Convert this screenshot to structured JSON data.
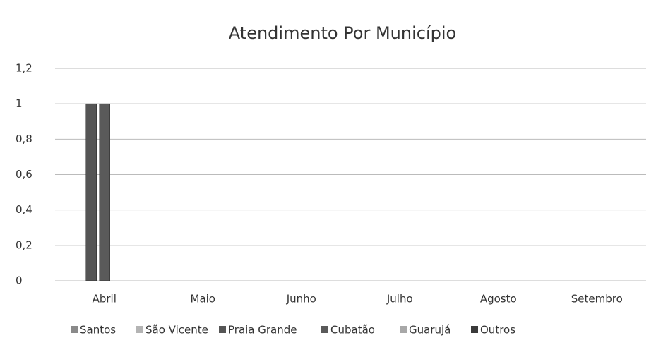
{
  "chart_data": {
    "type": "bar",
    "title": "Atendimento Por Município",
    "categories": [
      "Abril",
      "Maio",
      "Junho",
      "Julho",
      "Agosto",
      "Setembro"
    ],
    "series": [
      {
        "name": "Santos",
        "color": "#8a8a8a",
        "values": [
          0,
          0,
          0,
          0,
          0,
          0
        ]
      },
      {
        "name": "São Vicente",
        "color": "#b4b4b4",
        "values": [
          0,
          0,
          0,
          0,
          0,
          0
        ]
      },
      {
        "name": "Praia Grande",
        "color": "#555555",
        "values": [
          1,
          0,
          0,
          0,
          0,
          0
        ]
      },
      {
        "name": "Cubatão",
        "color": "#5a5a5a",
        "values": [
          1,
          0,
          0,
          0,
          0,
          0
        ]
      },
      {
        "name": "Guarujá",
        "color": "#a8a8a8",
        "values": [
          0,
          0,
          0,
          0,
          0,
          0
        ]
      },
      {
        "name": "Outros",
        "color": "#3a3a3a",
        "values": [
          0,
          0,
          0,
          0,
          0,
          0
        ]
      }
    ],
    "ylim": [
      0,
      1.2
    ],
    "yticks": [
      0,
      {
        "value": 0.2,
        "label": "0,2"
      },
      {
        "value": 0.4,
        "label": "0,4"
      },
      {
        "value": 0.6,
        "label": "0,6"
      },
      {
        "value": 0.8,
        "label": "0,8"
      },
      1,
      {
        "value": 1.2,
        "label": "1,2"
      }
    ],
    "grid": true,
    "legend": "bottom"
  }
}
